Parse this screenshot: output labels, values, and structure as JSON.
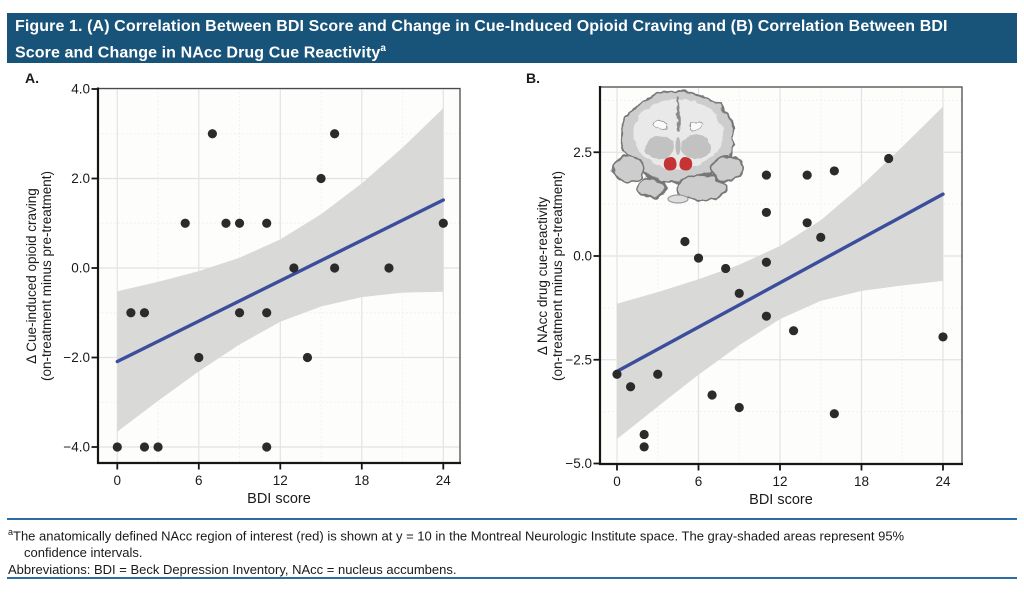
{
  "header": {
    "title_line1": "Figure 1. (A) Correlation Between BDI Score and Change in Cue-Induced Opioid Craving and (B) Correlation Between BDI",
    "title_line2": "Score and Change in NAcc Drug Cue Reactivity",
    "title_superscript": "a"
  },
  "colors": {
    "header_bg": "#185379",
    "header_text": "#ffffff",
    "separator_blue": "#2d6da3",
    "regression_line": "#3b4e9c",
    "ci_band": "#d9d9d7",
    "point": "#2b2b2b",
    "grid_major": "#e3e3e6",
    "grid_minor": "#ededf0",
    "frame": "#4a4a4a",
    "axis": "#161616",
    "text": "#1a1a1a",
    "plot_bg": "#fdfdfc",
    "nacc_red": "#c43434"
  },
  "footnote": {
    "superscript": "a",
    "text_line1": "The anatomically defined NAcc region of interest (red) is shown at y = 10 in the Montreal Neurologic Institute space. The gray-shaded areas represent 95%",
    "text_line2": "confidence intervals.",
    "abbreviations": "Abbreviations: BDI = Beck Depression Inventory, NAcc = nucleus accumbens."
  },
  "chart_data": [
    {
      "id": "A",
      "panel_label": "A.",
      "type": "scatter",
      "title": "(A) Correlation Between BDI Score and Change in Cue-Induced Opioid Craving",
      "xlabel": "BDI score",
      "ylabel_line1": "Δ Cue-induced opioid craving",
      "ylabel_line2": "(on-treatment minus pre-treatment)",
      "xlim": [
        -1.4,
        25.3
      ],
      "ylim": [
        -4.36,
        4.03
      ],
      "xticks": [
        0,
        6,
        12,
        18,
        24
      ],
      "xtick_labels": [
        "0",
        "6",
        "12",
        "18",
        "24"
      ],
      "yticks": [
        4,
        2,
        0,
        -2,
        -4
      ],
      "ytick_labels": [
        "4.0",
        "2.0",
        "0.0",
        "−2.0",
        "−4.0"
      ],
      "x_minor_gridlines": [
        3,
        9,
        15,
        21
      ],
      "y_minor_gridlines": [
        3,
        1,
        -1,
        -3
      ],
      "grid": true,
      "legend": "none",
      "points": [
        [
          0,
          -4
        ],
        [
          1,
          -1
        ],
        [
          2,
          -1
        ],
        [
          2,
          -4
        ],
        [
          3,
          -4
        ],
        [
          5,
          1
        ],
        [
          6,
          -2
        ],
        [
          7,
          3
        ],
        [
          8,
          1
        ],
        [
          9,
          1
        ],
        [
          9,
          -1
        ],
        [
          11,
          1
        ],
        [
          11,
          -1
        ],
        [
          11,
          -4
        ],
        [
          13,
          0
        ],
        [
          14,
          -2
        ],
        [
          15,
          2
        ],
        [
          16,
          3
        ],
        [
          16,
          0
        ],
        [
          20,
          0
        ],
        [
          24,
          1
        ]
      ],
      "regression_line": {
        "x": [
          0,
          24
        ],
        "y": [
          -2.09,
          1.52
        ]
      },
      "ci_band": {
        "x": [
          0,
          3,
          6,
          9,
          12,
          15,
          18,
          21,
          24
        ],
        "upper": [
          -0.52,
          -0.31,
          -0.07,
          0.23,
          0.64,
          1.2,
          1.89,
          2.69,
          3.57
        ],
        "lower": [
          -3.66,
          -2.97,
          -2.31,
          -1.71,
          -1.2,
          -0.86,
          -0.65,
          -0.55,
          -0.53
        ]
      }
    },
    {
      "id": "B",
      "panel_label": "B.",
      "type": "scatter",
      "title": "(B) Correlation Between BDI Score and Change in NAcc Drug Cue Reactivity",
      "xlabel": "BDI score",
      "ylabel_line1": "Δ NAcc drug cue-reactivity",
      "ylabel_line2": "(on-treatment minus pre-treatment)",
      "xlim": [
        -1.25,
        25.4
      ],
      "ylim": [
        -4.95,
        4.07
      ],
      "xticks": [
        0,
        6,
        12,
        18,
        24
      ],
      "xtick_labels": [
        "0",
        "6",
        "12",
        "18",
        "24"
      ],
      "yticks": [
        2.5,
        0,
        -2.5,
        -5
      ],
      "ytick_labels": [
        "2.5",
        "0.0",
        "−2.5",
        "−5.0"
      ],
      "x_minor_gridlines": [
        3,
        9,
        15,
        21
      ],
      "y_minor_gridlines": [
        3.75,
        1.25,
        -1.25,
        -3.75
      ],
      "grid": true,
      "legend": "none",
      "inset": "coronal brain slice with NAcc region highlighted in red",
      "points": [
        [
          0,
          -2.85
        ],
        [
          1,
          -3.15
        ],
        [
          2,
          -4.3
        ],
        [
          2,
          -4.6
        ],
        [
          3,
          -2.85
        ],
        [
          5,
          0.35
        ],
        [
          6,
          -0.05
        ],
        [
          7,
          -3.35
        ],
        [
          8,
          -0.3
        ],
        [
          9,
          -0.9
        ],
        [
          9,
          -3.65
        ],
        [
          11,
          1.95
        ],
        [
          11,
          1.05
        ],
        [
          11,
          -0.15
        ],
        [
          11,
          -1.45
        ],
        [
          13,
          -1.8
        ],
        [
          14,
          1.95
        ],
        [
          14,
          0.8
        ],
        [
          15,
          0.45
        ],
        [
          16,
          2.05
        ],
        [
          16,
          -3.8
        ],
        [
          20,
          2.35
        ],
        [
          24,
          -1.95
        ]
      ],
      "regression_line": {
        "x": [
          0,
          24
        ],
        "y": [
          -2.78,
          1.49
        ]
      },
      "ci_band": {
        "x": [
          0,
          3,
          6,
          9,
          12,
          15,
          18,
          21,
          24
        ],
        "upper": [
          -1.15,
          -0.87,
          -0.56,
          -0.21,
          0.24,
          0.86,
          1.7,
          2.63,
          3.6
        ],
        "lower": [
          -4.41,
          -3.63,
          -2.86,
          -2.15,
          -1.52,
          -1.08,
          -0.84,
          -0.71,
          -0.6
        ]
      }
    }
  ]
}
